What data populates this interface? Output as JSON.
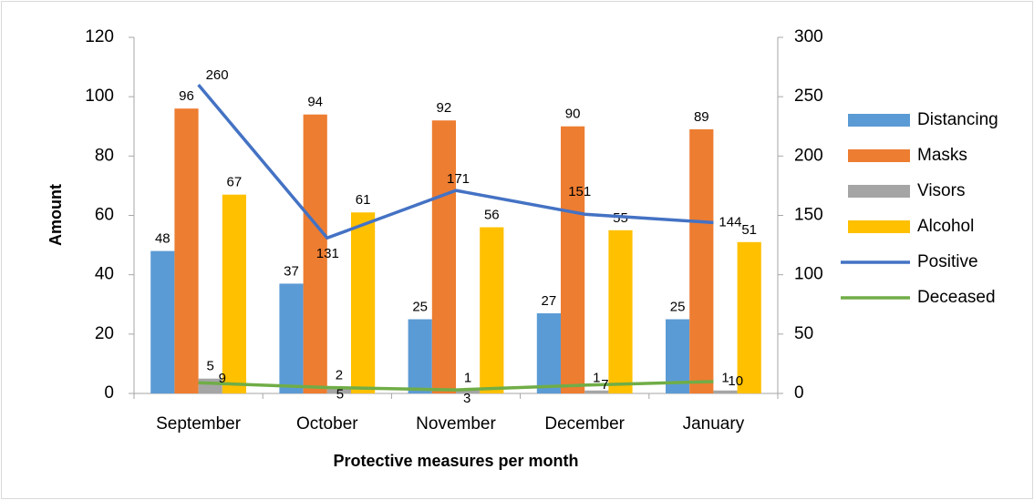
{
  "chart_data": {
    "type": "bar",
    "xlabel": "Protective measures per month",
    "ylabel": "Amount",
    "categories": [
      "September",
      "October",
      "November",
      "December",
      "January"
    ],
    "series": [
      {
        "name": "Distancing",
        "type": "bar",
        "color": "#5b9bd5",
        "values": [
          48,
          37,
          25,
          27,
          25
        ]
      },
      {
        "name": "Masks",
        "type": "bar",
        "color": "#ed7d31",
        "values": [
          96,
          94,
          92,
          90,
          89
        ]
      },
      {
        "name": "Visors",
        "type": "bar",
        "color": "#a5a5a5",
        "values": [
          5,
          2,
          1,
          1,
          1
        ]
      },
      {
        "name": "Alcohol",
        "type": "bar",
        "color": "#ffc000",
        "values": [
          67,
          61,
          56,
          55,
          51
        ]
      },
      {
        "name": "Positive",
        "type": "line",
        "axis": "y2",
        "color": "#4472c4",
        "values": [
          260,
          131,
          171,
          151,
          144
        ]
      },
      {
        "name": "Deceased",
        "type": "line",
        "axis": "y2",
        "color": "#70ad47",
        "values": [
          9,
          5,
          3,
          7,
          10
        ]
      }
    ],
    "ylim": [
      0,
      120
    ],
    "yticks": [
      0,
      20,
      40,
      60,
      80,
      100,
      120
    ],
    "y2lim": [
      0,
      300
    ],
    "y2ticks": [
      0,
      50,
      100,
      150,
      200,
      250,
      300
    ],
    "legend": "right"
  }
}
